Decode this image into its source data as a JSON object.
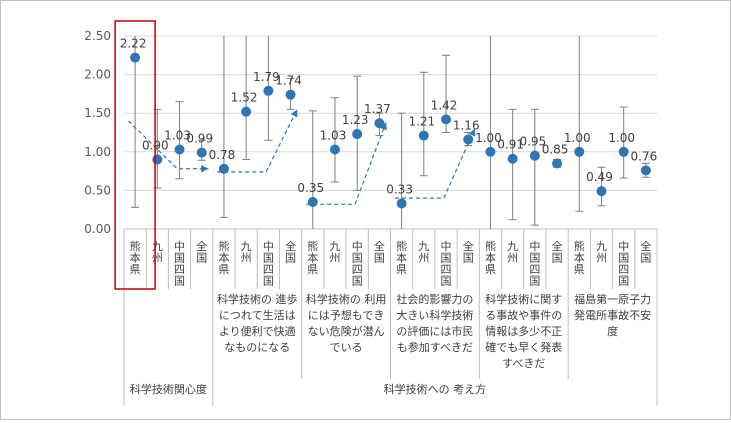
{
  "chart_data": {
    "type": "scatter",
    "y_ticks": [
      "0.00",
      "0.50",
      "1.00",
      "1.50",
      "2.00",
      "2.50"
    ],
    "ylim": [
      0,
      2.5
    ],
    "grid": "horizontal",
    "categories": [
      "熊本県",
      "九州",
      "中国四国",
      "全国",
      "熊本県",
      "九州",
      "中国四国",
      "全国",
      "熊本県",
      "九州",
      "中国四国",
      "全国",
      "熊本県",
      "九州",
      "中国四国",
      "全国",
      "熊本県",
      "九州",
      "中国四国",
      "全国",
      "熊本県",
      "九州",
      "中国四国",
      "全国"
    ],
    "values": [
      2.22,
      0.9,
      1.03,
      0.99,
      0.78,
      1.52,
      1.79,
      1.74,
      0.35,
      1.03,
      1.23,
      1.37,
      0.33,
      1.21,
      1.42,
      1.16,
      1.0,
      0.91,
      0.95,
      0.85,
      1.0,
      0.49,
      1.0,
      0.76
    ],
    "value_labels": [
      "2.22",
      "0.90",
      "1.03",
      "0.99",
      "0.78",
      "1.52",
      "1.79",
      "1.74",
      "0.35",
      "1.03",
      "1.23",
      "1.37",
      "0.33",
      "1.21",
      "1.42",
      "1.16",
      "1.00",
      "0.91",
      "0.95",
      "0.85",
      "1.00",
      "0.49",
      "1.00",
      "0.76"
    ],
    "error_low": [
      0.28,
      0.53,
      0.65,
      0.89,
      0.15,
      0.9,
      1.15,
      1.55,
      0.0,
      0.61,
      0.5,
      1.21,
      0.0,
      0.69,
      1.25,
      1.08,
      0.0,
      0.12,
      0.05,
      0.8,
      0.23,
      0.3,
      0.66,
      0.67
    ],
    "error_high": [
      2.5,
      1.55,
      1.65,
      1.15,
      2.5,
      2.5,
      2.5,
      1.95,
      1.53,
      1.7,
      1.98,
      1.5,
      1.5,
      2.03,
      2.25,
      1.25,
      2.5,
      1.55,
      1.55,
      0.9,
      2.5,
      0.8,
      1.58,
      0.85
    ],
    "groups": [
      {
        "label_lines": []
      },
      {
        "label_lines": [
          "科学技術の 進歩",
          "につれて生活は",
          "より便利で快適",
          "なものになる"
        ]
      },
      {
        "label_lines": [
          "科学技術の 利用",
          "には予想もでき",
          "ない危険が潜ん",
          "でいる"
        ]
      },
      {
        "label_lines": [
          "社会的影響力の",
          "大きい科学技術",
          "の評価には市民",
          "も参加すべきだ"
        ]
      },
      {
        "label_lines": [
          "科学技術に関す",
          "る事故や事件の",
          "情報は多少不正",
          "確でも早く発表",
          "すべきだ"
        ]
      },
      {
        "label_lines": [
          "福島第一原子力",
          "発電所事故不安",
          "度"
        ]
      }
    ],
    "super_categories": [
      "科学技術関心度",
      "科学技術への 考え方"
    ],
    "colors": {
      "point": "#2e75b6",
      "error_bar": "#7f7f7f",
      "trend": "#2e75b6",
      "highlight_box": "#c00000",
      "grid": "#d9d9d9"
    }
  }
}
